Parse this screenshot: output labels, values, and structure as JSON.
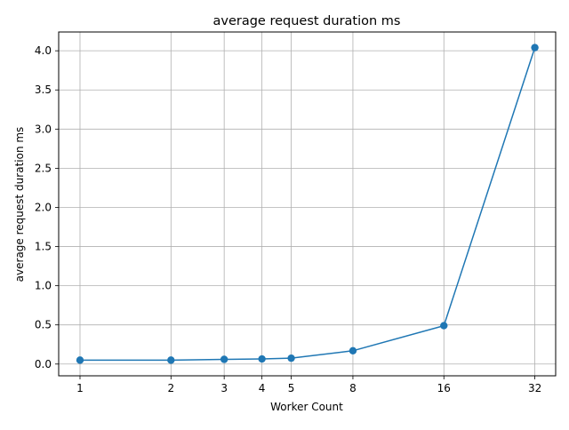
{
  "chart_data": {
    "type": "line",
    "title": "average request duration ms",
    "xlabel": "Worker Count",
    "ylabel": "average request duration ms",
    "x_scale": "log2",
    "xlim": [
      0.85,
      37.5
    ],
    "ylim": [
      -0.15,
      4.24
    ],
    "x_ticks": [
      1,
      2,
      3,
      4,
      5,
      8,
      16,
      32
    ],
    "y_ticks": [
      0.0,
      0.5,
      1.0,
      1.5,
      2.0,
      2.5,
      3.0,
      3.5,
      4.0
    ],
    "grid": true,
    "legend": "none",
    "series": [
      {
        "color": "#1f77b4",
        "marker": "circle",
        "x": [
          1,
          2,
          3,
          4,
          5,
          8,
          16,
          32
        ],
        "y": [
          0.05,
          0.05,
          0.06,
          0.065,
          0.075,
          0.17,
          0.49,
          4.04
        ]
      }
    ]
  }
}
